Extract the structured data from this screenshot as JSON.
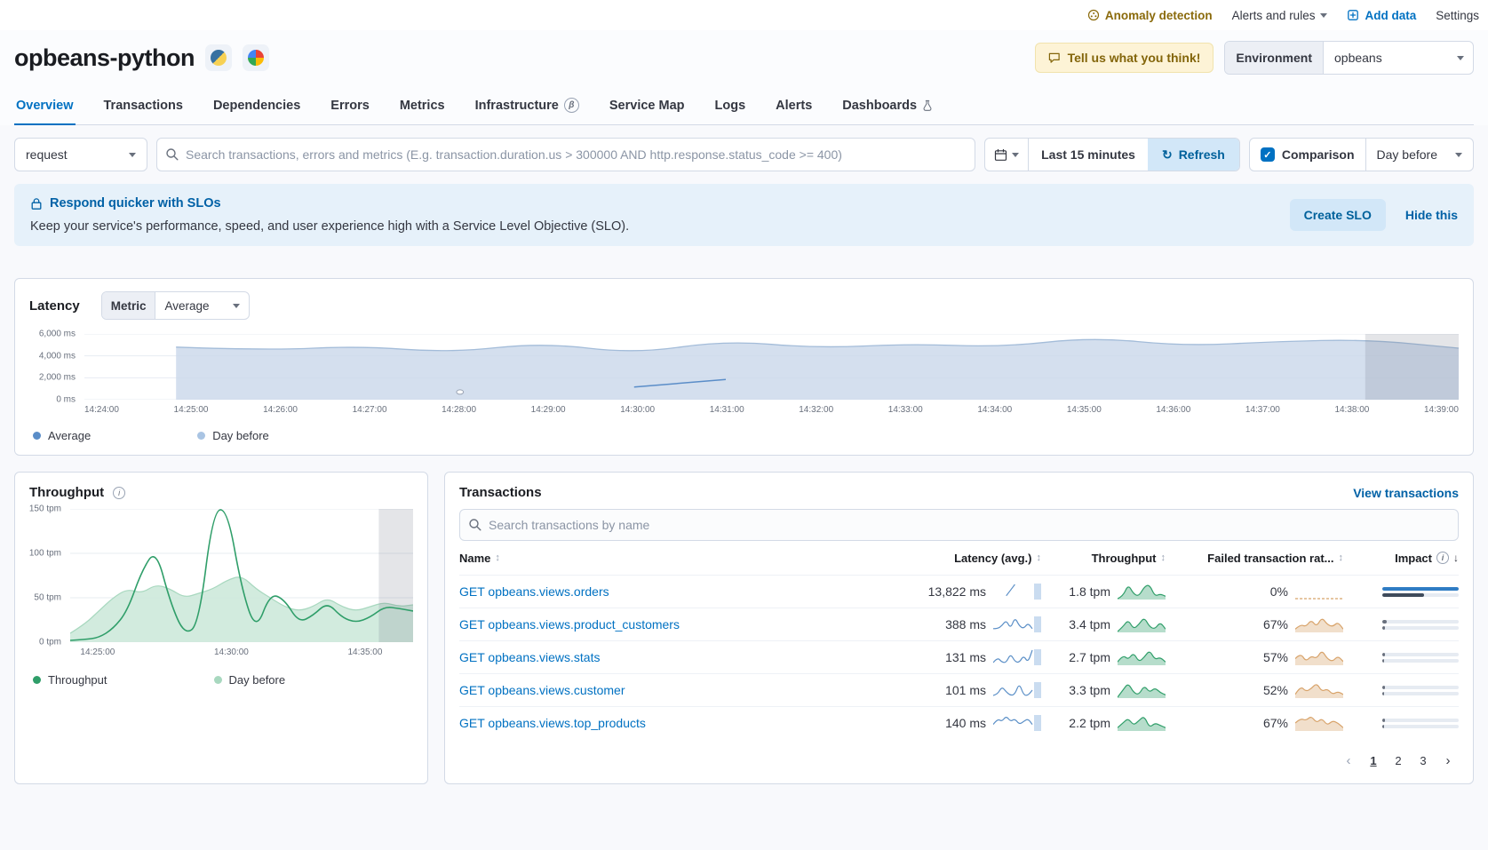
{
  "icons": {
    "refresh": "↻",
    "sort": "↕",
    "sort_desc": "↓",
    "prev_page": "‹",
    "next_page": "›",
    "check": "✓",
    "beta": "β",
    "info": "i"
  },
  "colors": {
    "primary": "#0071c2",
    "latency_area": "#c9d7ea",
    "latency_area_stroke": "#a3bcd9",
    "latency_avg_line": "#5a8dc8",
    "green": "#2f9e69",
    "green_area": "#cde9da",
    "green_area_stroke": "#a8d8bf",
    "tan": "#d8a36a",
    "latency_spark": "#5b8fc7"
  },
  "topbar": {
    "anomaly_detection": "Anomaly detection",
    "alerts_and_rules": "Alerts and rules",
    "add_data": "Add data",
    "settings": "Settings"
  },
  "header": {
    "title": "opbeans-python",
    "feedback_button": "Tell us what you think!",
    "environment_label": "Environment",
    "environment_value": "opbeans"
  },
  "tabs": [
    {
      "label": "Overview",
      "active": true
    },
    {
      "label": "Transactions"
    },
    {
      "label": "Dependencies"
    },
    {
      "label": "Errors"
    },
    {
      "label": "Metrics"
    },
    {
      "label": "Infrastructure",
      "badge": "β"
    },
    {
      "label": "Service Map"
    },
    {
      "label": "Logs"
    },
    {
      "label": "Alerts"
    },
    {
      "label": "Dashboards",
      "flask": true
    }
  ],
  "search_row": {
    "type_select": "request",
    "search_placeholder": "Search transactions, errors and metrics (E.g. transaction.duration.us > 300000 AND http.response.status_code >= 400)",
    "time_range": "Last 15 minutes",
    "refresh_label": "Refresh",
    "comparison_label": "Comparison",
    "comparison_value": "Day before"
  },
  "slo_banner": {
    "title": "Respond quicker with SLOs",
    "description": "Keep your service's performance, speed, and user experience high with a Service Level Objective (SLO).",
    "create_button": "Create SLO",
    "hide_link": "Hide this"
  },
  "latency": {
    "title": "Latency",
    "metric_label": "Metric",
    "metric_value": "Average",
    "legend": [
      {
        "label": "Average",
        "color": "#5a8dc8"
      },
      {
        "label": "Day before",
        "color": "#a9c4e3"
      }
    ],
    "chart": {
      "type": "area",
      "ymax": 6000,
      "y_ticks": [
        "6,000 ms",
        "4,000 ms",
        "2,000 ms",
        "0 ms"
      ],
      "x_ticks": [
        "14:24:00",
        "14:25:00",
        "14:26:00",
        "14:27:00",
        "14:28:00",
        "14:29:00",
        "14:30:00",
        "14:31:00",
        "14:32:00",
        "14:33:00",
        "14:34:00",
        "14:35:00",
        "14:36:00",
        "14:37:00",
        "14:38:00",
        "14:39:00"
      ],
      "day_before_ms": [
        null,
        4800,
        4500,
        4900,
        4300,
        5200,
        4200,
        5400,
        4700,
        5100,
        4800,
        5700,
        4900,
        5300,
        5500,
        4700
      ],
      "average_ms_segment": {
        "x_idx": [
          6,
          7
        ],
        "values": [
          1150,
          1850
        ]
      },
      "marker": {
        "x_idx": 4.1,
        "value": 700
      },
      "partial_band": [
        0.932,
        1.0
      ]
    }
  },
  "throughput": {
    "title": "Throughput",
    "legend": [
      {
        "label": "Throughput",
        "color": "#2f9e69"
      },
      {
        "label": "Day before",
        "color": "#a8d8bf"
      }
    ],
    "chart": {
      "type": "line",
      "ymax": 150,
      "y_ticks": [
        "150 tpm",
        "100 tpm",
        "50 tpm",
        "0 tpm"
      ],
      "x_ticks": [
        "14:25:00",
        "14:30:00",
        "14:35:00"
      ],
      "x_tick_pos": [
        0.08,
        0.47,
        0.86
      ],
      "throughput_tpm": [
        2,
        3,
        5,
        15,
        35,
        80,
        105,
        45,
        8,
        20,
        148,
        150,
        60,
        12,
        55,
        48,
        22,
        30,
        45,
        28,
        22,
        28,
        40,
        38,
        35
      ],
      "day_before_tpm": [
        10,
        20,
        35,
        50,
        60,
        55,
        65,
        60,
        50,
        55,
        60,
        70,
        75,
        60,
        50,
        40,
        35,
        40,
        50,
        40,
        35,
        40,
        45,
        40,
        42
      ],
      "partial_band": [
        0.9,
        1.0
      ]
    }
  },
  "transactions": {
    "title": "Transactions",
    "view_link": "View transactions",
    "search_placeholder": "Search transactions by name",
    "columns": [
      "Name",
      "Latency (avg.)",
      "Throughput",
      "Failed transaction rat...",
      "Impact"
    ],
    "rows": [
      {
        "name": "GET opbeans.views.orders",
        "latency": "13,822 ms",
        "throughput": "1.8 tpm",
        "failed_rate": "0%",
        "latency_spark": [
          null,
          null,
          null,
          1,
          3,
          5,
          null,
          null,
          null,
          null
        ],
        "throughput_spark": [
          0,
          1,
          6,
          2,
          1,
          5,
          6,
          1,
          2,
          1
        ],
        "failed_spark": [
          0,
          0,
          0,
          0,
          0,
          0,
          0,
          0,
          0,
          0
        ],
        "impact_current": 1.0,
        "impact_previous": 0.55,
        "impact_color": "#2f7cc4",
        "impact_prev_color": "#3f4b5b"
      },
      {
        "name": "GET opbeans.views.product_customers",
        "latency": "388 ms",
        "throughput": "3.4 tpm",
        "failed_rate": "67%",
        "latency_spark": [
          1,
          1,
          2,
          4,
          1,
          5,
          2,
          1,
          3,
          1
        ],
        "throughput_spark": [
          0,
          2,
          5,
          1,
          3,
          6,
          2,
          1,
          4,
          1
        ],
        "failed_spark": [
          1,
          3,
          2,
          5,
          2,
          6,
          3,
          2,
          4,
          1
        ],
        "impact_current": 0.06,
        "impact_previous": 0.04,
        "impact_color": "#69707d",
        "impact_prev_color": "#69707d"
      },
      {
        "name": "GET opbeans.views.stats",
        "latency": "131 ms",
        "throughput": "2.7 tpm",
        "failed_rate": "57%",
        "latency_spark": [
          0.5,
          2,
          0.6,
          0.5,
          3,
          0.8,
          0.5,
          2.5,
          0.5,
          4
        ],
        "throughput_spark": [
          1,
          4,
          2,
          5,
          1,
          3,
          6,
          2,
          3,
          1
        ],
        "failed_spark": [
          2,
          4,
          1,
          3,
          2,
          5,
          2,
          1,
          3,
          1
        ],
        "impact_current": 0.03,
        "impact_previous": 0.02,
        "impact_color": "#69707d",
        "impact_prev_color": "#69707d"
      },
      {
        "name": "GET opbeans.views.customer",
        "latency": "101 ms",
        "throughput": "3.3 tpm",
        "failed_rate": "52%",
        "latency_spark": [
          0.5,
          0.8,
          3,
          1.5,
          0.5,
          0.8,
          4,
          0.6,
          0.5,
          2
        ],
        "throughput_spark": [
          0,
          3,
          6,
          2,
          1,
          5,
          2,
          4,
          2,
          1
        ],
        "failed_spark": [
          1,
          4,
          2,
          3,
          5,
          2,
          3,
          1,
          2,
          1
        ],
        "impact_current": 0.03,
        "impact_previous": 0.02,
        "impact_color": "#69707d",
        "impact_prev_color": "#69707d"
      },
      {
        "name": "GET opbeans.views.top_products",
        "latency": "140 ms",
        "throughput": "2.2 tpm",
        "failed_rate": "67%",
        "latency_spark": [
          2,
          4,
          3,
          5,
          3,
          4,
          2,
          3,
          4,
          2
        ],
        "throughput_spark": [
          1,
          3,
          5,
          2,
          4,
          6,
          1,
          3,
          2,
          1
        ],
        "failed_spark": [
          3,
          5,
          4,
          6,
          3,
          5,
          2,
          4,
          3,
          1
        ],
        "impact_current": 0.03,
        "impact_previous": 0.02,
        "impact_color": "#69707d",
        "impact_prev_color": "#69707d"
      }
    ],
    "pagination": {
      "pages": [
        "1",
        "2",
        "3"
      ],
      "active": "1"
    }
  }
}
